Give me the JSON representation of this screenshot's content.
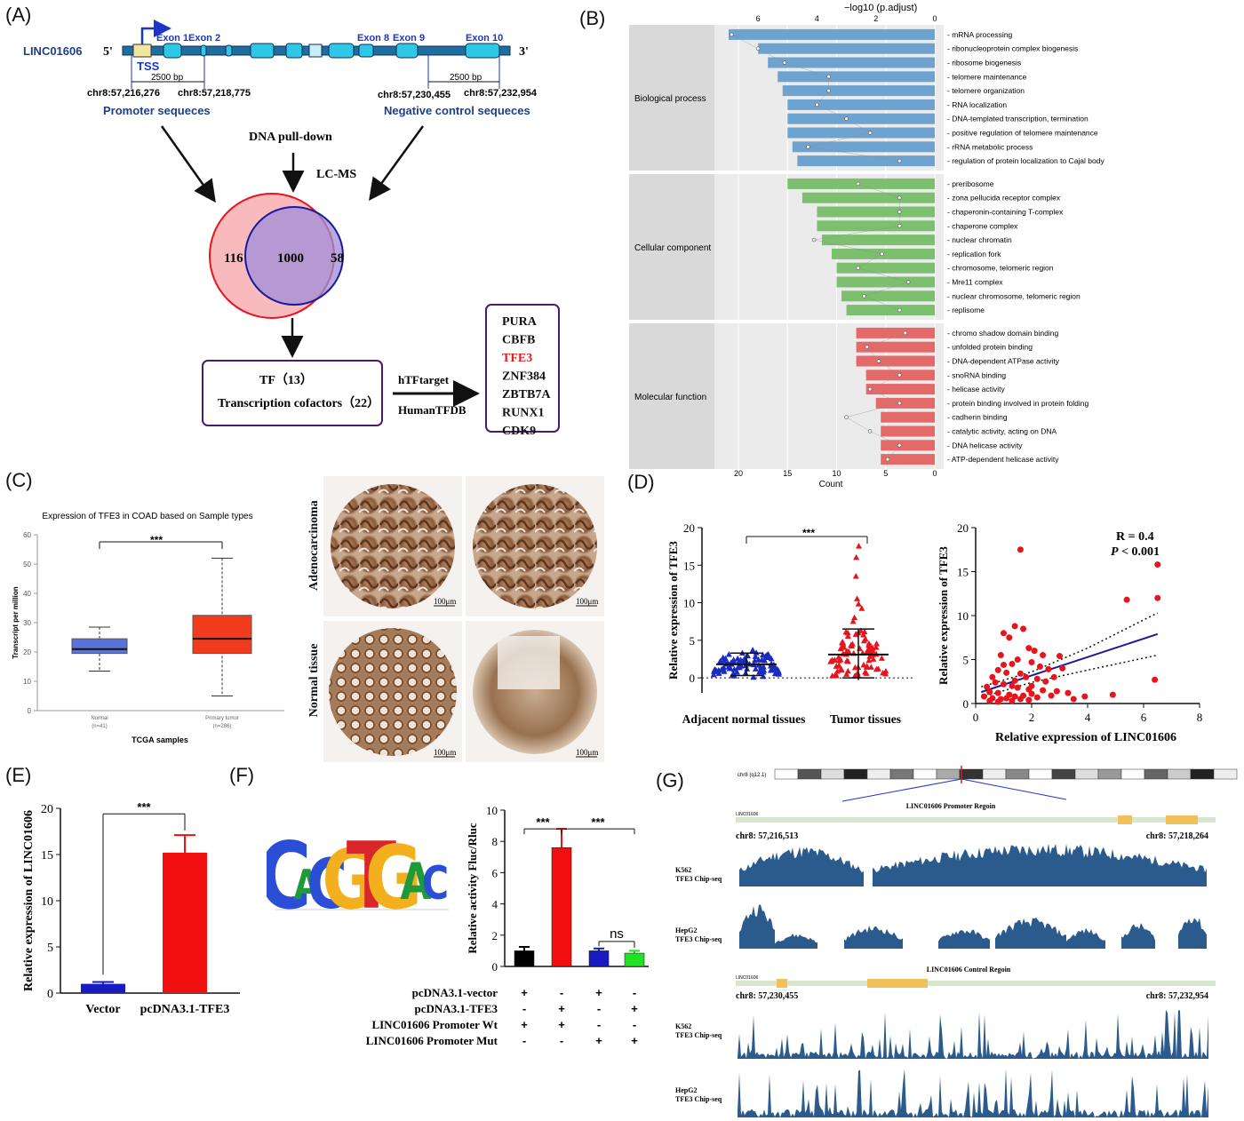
{
  "panel_labels": {
    "A": "(A)",
    "B": "(B)",
    "C": "(C)",
    "D": "(D)",
    "E": "(E)",
    "F": "(F)",
    "G": "(G)"
  },
  "panel_a": {
    "gene_name": "LINC01606",
    "five_prime": "5'",
    "three_prime": "3'",
    "exon_labels": [
      "Exon 1",
      "Exon 2",
      "Exon 8",
      "Exon 9",
      "Exon 10"
    ],
    "tss": "TSS",
    "bp_left": "2500 bp",
    "bp_right": "2500 bp",
    "coord_1": "chr8:57,216,276",
    "coord_2": "chr8:57,218,775",
    "coord_3": "chr8:57,230,455",
    "coord_4": "chr8:57,232,954",
    "promoter_label": "Promoter sequeces",
    "negative_label": "Negative control sequeces",
    "pulldown": "DNA pull-down",
    "lcms": "LC-MS",
    "venn_left": "116",
    "venn_center": "1000",
    "venn_right": "58",
    "box_line1": "TF（13）",
    "box_line2": "Transcription cofactors（22）",
    "arrow_top": "hTFtarget",
    "arrow_bottom": "HumanTFDB",
    "tf_list": [
      "PURA",
      "CBFB",
      "TFE3",
      "ZNF384",
      "ZBTB7A",
      "RUNX1",
      "CDK9"
    ],
    "tf_highlight_color": "#e31a1c"
  },
  "panel_c": {
    "title": "Expression of TFE3 in COAD based on Sample types",
    "ylabel": "Transcript per million",
    "xlabel": "TCGA samples",
    "sig": "***",
    "ihc_row1": "Adenocarcinoma",
    "ihc_row2": "Normal tissue",
    "scale": "100μm"
  },
  "panel_d": {
    "sig": "***",
    "r_text": "R = 0.4",
    "p_text_italic": "P",
    "p_text_rest": " < 0.001"
  },
  "panel_e": {
    "sig": "***"
  },
  "panel_f": {
    "sig1": "***",
    "sig2": "***",
    "sig3": "ns",
    "motif_letters": [
      "C",
      "A",
      "C",
      "G",
      "T",
      "G",
      "A",
      "C"
    ],
    "row_labels": [
      "pcDNA3.1-vector",
      "pcDNA3.1-TFE3",
      "LINC01606  Promoter Wt",
      "LINC01606  Promoter Mut"
    ],
    "row_signs": [
      [
        "+",
        "-",
        "+",
        "-"
      ],
      [
        "-",
        "+",
        "-",
        "+"
      ],
      [
        "+",
        "+",
        "-",
        "-"
      ],
      [
        "-",
        "-",
        "+",
        "+"
      ]
    ]
  },
  "panel_g": {
    "chrom_label": "chr8 (q12.1)",
    "promoter_title": "LINC01606 Promoter Regoin",
    "control_title": "LINC01606 Control Regoin",
    "gene_tag": "LINC01606",
    "p_left": "chr8: 57,216,513",
    "p_right": "chr8: 57,218,264",
    "c_left": "chr8: 57,230,455",
    "c_right": "chr8: 57,232,954",
    "track1": "K562\nTFE3 Chip-seq",
    "track2": "HepG2\nTFE3 Chip-seq",
    "track_color": "#2a5b8c"
  },
  "chart_data": [
    {
      "panel": "B",
      "type": "bar",
      "orientation": "horizontal",
      "xlabel_top": "−log10 (p.adjust)",
      "xlabel_bottom": "Count",
      "top_ticks": [
        6,
        4,
        2,
        0
      ],
      "bottom_ticks": [
        20,
        15,
        10,
        5,
        0
      ],
      "groups": [
        {
          "name": "Biological process",
          "color": "#6fa3cf",
          "categories": [
            "mRNA processing",
            "ribonucleoprotein complex biogenesis",
            "ribosome biogenesis",
            "telomere maintenance",
            "telomere organization",
            "RNA localization",
            "DNA-templated transcription, termination",
            "positive regulation of telomere maintenance",
            "rRNA metabolic process",
            "regulation of protein localization to Cajal body"
          ],
          "counts": [
            21,
            18,
            17,
            16,
            15.5,
            15,
            15,
            15,
            14.5,
            14
          ],
          "neglog10_padj": [
            6.9,
            6.0,
            5.1,
            3.6,
            3.6,
            4.0,
            3.0,
            2.2,
            4.3,
            1.2
          ]
        },
        {
          "name": "Cellular component",
          "color": "#7cbf6f",
          "categories": [
            "preribosome",
            "zona pellucida receptor complex",
            "chaperonin-containing T-complex",
            "chaperone complex",
            "nuclear chromatin",
            "replication fork",
            "chromosome, telomeric region",
            "Mre11 complex",
            "nuclear chromosome, telomeric region",
            "replisome"
          ],
          "counts": [
            15,
            13.5,
            12,
            12,
            11.5,
            10.5,
            10,
            10,
            9.5,
            9
          ],
          "neglog10_padj": [
            2.6,
            1.2,
            1.2,
            1.2,
            4.1,
            1.8,
            2.6,
            0.9,
            2.4,
            1.2
          ]
        },
        {
          "name": "Molecular function",
          "color": "#e46a6a",
          "categories": [
            "chromo shadow domain binding",
            "unfolded protein binding",
            "DNA-dependent ATPase activity",
            "snoRNA binding",
            "helicase activity",
            "protein binding involved in protein folding",
            "cadherin binding",
            "catalytic activity, acting on DNA",
            "DNA helicase activity",
            "ATP-dependent helicase activity"
          ],
          "counts": [
            8,
            8,
            8,
            7,
            7,
            6,
            5.5,
            5.5,
            5.5,
            5.5
          ],
          "neglog10_padj": [
            1.0,
            2.3,
            1.9,
            1.2,
            2.2,
            1.2,
            3.0,
            2.2,
            1.2,
            1.6
          ]
        }
      ]
    },
    {
      "panel": "C",
      "type": "box",
      "categories": [
        "Normal\n(n=41)",
        "Primary tumor\n(n=286)"
      ],
      "ylim": [
        0,
        60
      ],
      "yticks": [
        0,
        10,
        20,
        30,
        40,
        50,
        60
      ],
      "boxes": [
        {
          "min": 13.5,
          "q1": 19.5,
          "median": 21,
          "q3": 24.5,
          "max": 28.5,
          "color": "#5a73d6"
        },
        {
          "min": 5,
          "q1": 19.5,
          "median": 24.5,
          "q3": 32.5,
          "max": 52,
          "color": "#f23b1c"
        }
      ]
    },
    {
      "panel": "D-left",
      "type": "scatter",
      "ylabel": "Relative expression of TFE3",
      "categories": [
        "Adjacent normal tissues",
        "Tumor tissues"
      ],
      "ylim": [
        -2,
        20
      ],
      "yticks": [
        0,
        5,
        10,
        15,
        20
      ],
      "groups": [
        {
          "name": "Adjacent normal tissues",
          "mean": 1.8,
          "sd": 1.5,
          "color": "#1a2bbf"
        },
        {
          "name": "Tumor tissues",
          "mean": 3.1,
          "sd": 3.4,
          "color": "#e8141c"
        }
      ]
    },
    {
      "panel": "D-right",
      "type": "scatter",
      "xlabel": "Relative expression of LINC01606",
      "ylabel": "Relative expression of TFE3",
      "xlim": [
        0,
        8
      ],
      "ylim": [
        0,
        20
      ],
      "xticks": [
        0,
        2,
        4,
        6,
        8
      ],
      "yticks": [
        0,
        5,
        10,
        15,
        20
      ],
      "fit": {
        "x": [
          0.2,
          6.5
        ],
        "y": [
          1.3,
          7.9
        ]
      },
      "ci_upper": {
        "x": [
          0.2,
          2,
          4,
          6.5
        ],
        "y": [
          1.9,
          3.6,
          6.3,
          10.3
        ]
      },
      "ci_lower": {
        "x": [
          0.2,
          2,
          4,
          6.5
        ],
        "y": [
          0.7,
          2.4,
          3.8,
          5.5
        ]
      },
      "points": [
        [
          1.6,
          17.5
        ],
        [
          6.5,
          15.8
        ],
        [
          6.5,
          12
        ],
        [
          5.4,
          11.8
        ],
        [
          6.4,
          2.7
        ],
        [
          1.4,
          8.8
        ],
        [
          1.7,
          8.5
        ],
        [
          1.0,
          8.0
        ],
        [
          1.2,
          7.5
        ],
        [
          2.4,
          5.5
        ],
        [
          2.1,
          6.0
        ],
        [
          1.9,
          6.3
        ],
        [
          0.9,
          5.5
        ],
        [
          1.5,
          5.0
        ],
        [
          1.3,
          4.5
        ],
        [
          2.0,
          4.7
        ],
        [
          2.3,
          4.2
        ],
        [
          2.6,
          3.9
        ],
        [
          3.0,
          5.4
        ],
        [
          3.1,
          4.0
        ],
        [
          2.8,
          3.0
        ],
        [
          1.1,
          3.5
        ],
        [
          0.8,
          3.8
        ],
        [
          1.6,
          3.4
        ],
        [
          1.8,
          3.0
        ],
        [
          2.2,
          2.8
        ],
        [
          2.5,
          2.5
        ],
        [
          0.6,
          3.0
        ],
        [
          0.7,
          2.4
        ],
        [
          1.0,
          2.2
        ],
        [
          1.3,
          2.0
        ],
        [
          1.5,
          1.8
        ],
        [
          1.9,
          1.6
        ],
        [
          2.4,
          1.5
        ],
        [
          2.9,
          1.4
        ],
        [
          3.3,
          1.2
        ],
        [
          0.4,
          1.9
        ],
        [
          0.5,
          1.3
        ],
        [
          0.8,
          1.2
        ],
        [
          1.2,
          1.0
        ],
        [
          1.4,
          0.8
        ],
        [
          1.7,
          0.9
        ],
        [
          2.0,
          1.1
        ],
        [
          2.7,
          0.9
        ],
        [
          0.3,
          0.8
        ],
        [
          0.6,
          0.6
        ],
        [
          0.9,
          0.5
        ],
        [
          1.1,
          0.6
        ],
        [
          1.6,
          0.5
        ],
        [
          2.2,
          0.7
        ],
        [
          0.5,
          0.3
        ],
        [
          0.8,
          0.2
        ],
        [
          1.3,
          0.3
        ],
        [
          1.9,
          0.4
        ],
        [
          3.9,
          0.8
        ],
        [
          4.9,
          1.0
        ],
        [
          1.0,
          4.4
        ],
        [
          2.0,
          2.0
        ],
        [
          1.4,
          2.6
        ],
        [
          3.5,
          0.5
        ]
      ]
    },
    {
      "panel": "E",
      "type": "bar",
      "ylabel": "Relative expression of LINC01606",
      "categories": [
        "Vector",
        "pcDNA3.1-TFE3"
      ],
      "values": [
        1.0,
        15.2
      ],
      "errors": [
        0.2,
        1.9
      ],
      "colors": [
        "#1a1ac2",
        "#f01010"
      ],
      "ylim": [
        0,
        20
      ],
      "yticks": [
        0,
        5,
        10,
        15,
        20
      ]
    },
    {
      "panel": "F",
      "type": "bar",
      "ylabel": "Relative activity Fluc/Rluc",
      "categories": [
        "1",
        "2",
        "3",
        "4"
      ],
      "values": [
        1.0,
        7.6,
        1.0,
        0.85
      ],
      "errors": [
        0.25,
        1.2,
        0.15,
        0.15
      ],
      "colors": [
        "#000000",
        "#f01010",
        "#1a1ac2",
        "#22e022"
      ],
      "ylim": [
        0,
        10
      ],
      "yticks": [
        0,
        2,
        4,
        6,
        8,
        10
      ]
    }
  ]
}
